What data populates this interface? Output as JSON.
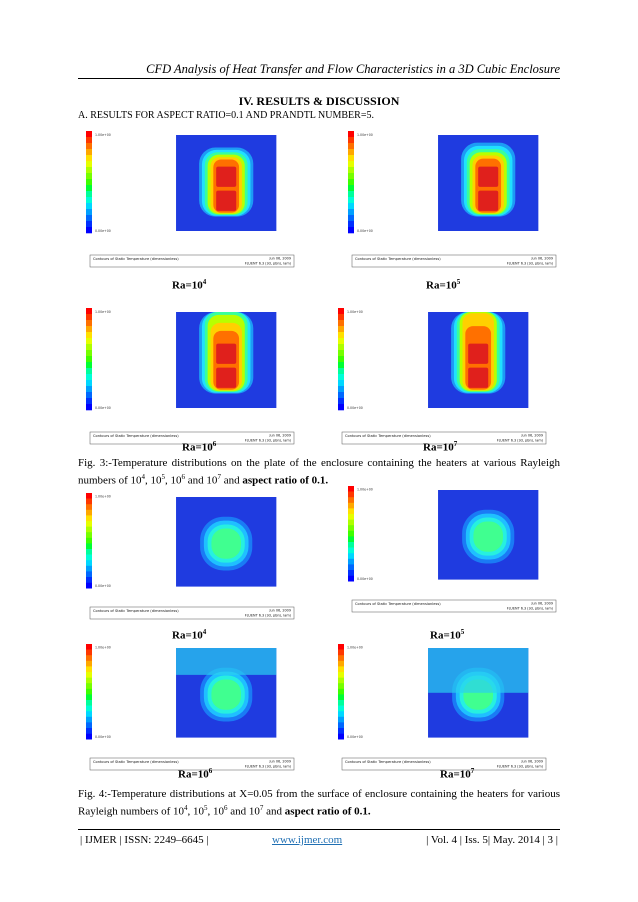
{
  "header": {
    "running_title": "CFD Analysis of Heat Transfer and Flow Characteristics in a 3D Cubic Enclosure"
  },
  "section": {
    "title": "IV.   RESULTS & DISCUSSION",
    "subsection": "A. RESULTS FOR ASPECT RATIO=0.1 AND PRANDTL NUMBER=5."
  },
  "plot_text": {
    "footer_left": "Contours of Static Temperature (dimensionless)",
    "date": "Jun 06, 2009",
    "solver": "FLUENT 6.3 (3d, pbns, lam)",
    "top_legend_value": "1.00e+00",
    "bottom_legend_value": "0.00e+00"
  },
  "fig3": {
    "panels": [
      {
        "ra_base": "Ra=10",
        "ra_exp": "4",
        "spread": 0.15
      },
      {
        "ra_base": "Ra=10",
        "ra_exp": "5",
        "spread": 0.2
      },
      {
        "ra_base": "Ra=10",
        "ra_exp": "6",
        "spread": 0.5
      },
      {
        "ra_base": "Ra=10",
        "ra_exp": "7",
        "spread": 0.8
      }
    ],
    "caption": {
      "part1": "Fig. 3:-Temperature distributions on the plate of the enclosure containing the heaters at various Rayleigh numbers of 10",
      "e1": "4",
      "s1": ", 10",
      "e2": "5",
      "s2": ", 10",
      "e3": "6",
      "s3": " and 10",
      "e4": "7",
      "s4": " and ",
      "bold": "aspect ratio of 0.1."
    }
  },
  "fig4": {
    "panels": [
      {
        "ra_base": "Ra=10",
        "ra_exp": "4"
      },
      {
        "ra_base": "Ra=10",
        "ra_exp": "5"
      },
      {
        "ra_base": "Ra=10",
        "ra_exp": "6"
      },
      {
        "ra_base": "Ra=10",
        "ra_exp": "7"
      }
    ],
    "caption": {
      "part1": "Fig. 4:-Temperature distributions at X=0.05 from the surface of enclosure containing the heaters for various Rayleigh numbers of 10",
      "e1": "4",
      "s1": ", 10",
      "e2": "5",
      "s2": ", 10",
      "e3": "6",
      "s3": " and 10",
      "e4": "7",
      "s4": " and ",
      "bold": "aspect ratio of 0.1."
    }
  },
  "footer": {
    "journal": "| IJMER | ISSN: 2249–6645 |",
    "website": "www.ijmer.com",
    "volume": "| Vol. 4 | Iss. 5| May. 2014 | 3 |"
  },
  "colors": {
    "background_blue": "#1f3be0",
    "heater_red": "#e0201c",
    "link": "#1f6fb3"
  }
}
